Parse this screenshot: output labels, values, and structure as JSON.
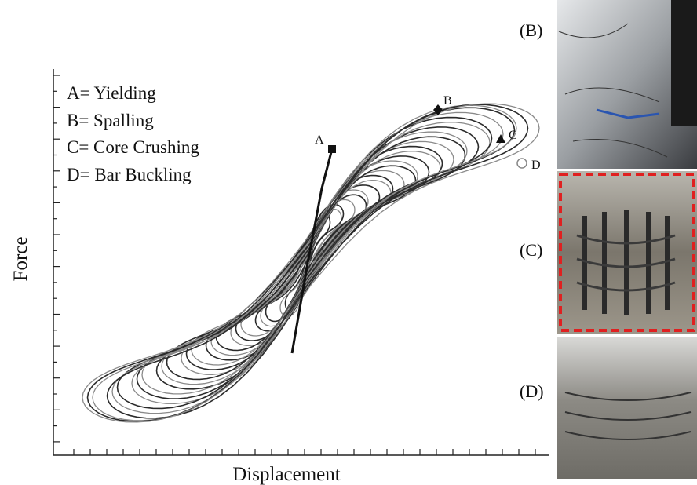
{
  "figure": {
    "x_axis_label": "Displacement",
    "y_axis_label": "Force",
    "legend": [
      "A= Yielding",
      "B= Spalling",
      "C= Core Crushing",
      "D= Bar Buckling"
    ],
    "point_labels": [
      "A",
      "B",
      "C",
      "D"
    ],
    "photo_labels": [
      "(B)",
      "(C)",
      "(D)"
    ]
  }
}
